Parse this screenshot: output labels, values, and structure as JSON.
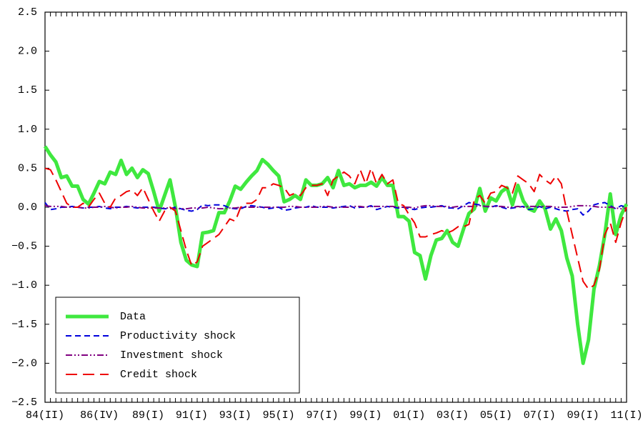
{
  "chart_data": {
    "type": "line",
    "categories": [
      "84(II)",
      null,
      null,
      null,
      null,
      null,
      null,
      null,
      null,
      null,
      "86(IV)",
      null,
      null,
      null,
      null,
      null,
      null,
      null,
      null,
      "89(I)",
      null,
      null,
      null,
      null,
      null,
      null,
      null,
      "91(I)",
      null,
      null,
      null,
      null,
      null,
      null,
      null,
      "93(I)",
      null,
      null,
      null,
      null,
      null,
      null,
      null,
      "95(I)",
      null,
      null,
      null,
      null,
      null,
      null,
      null,
      "97(I)",
      null,
      null,
      null,
      null,
      null,
      null,
      null,
      "99(I)",
      null,
      null,
      null,
      null,
      null,
      null,
      null,
      "01(I)",
      null,
      null,
      null,
      null,
      null,
      null,
      null,
      "03(I)",
      null,
      null,
      null,
      null,
      null,
      null,
      null,
      "05(I)",
      null,
      null,
      null,
      null,
      null,
      null,
      null,
      "07(I)",
      null,
      null,
      null,
      null,
      null,
      null,
      null,
      "09(I)",
      null,
      null,
      null,
      null,
      null,
      null,
      null,
      "11(I)"
    ],
    "series": [
      {
        "name": "Data",
        "color": "#3fe83f",
        "dash": "none",
        "width": 5,
        "values": [
          0.78,
          0.67,
          0.58,
          0.38,
          0.4,
          0.27,
          0.27,
          0.1,
          0.04,
          0.18,
          0.33,
          0.3,
          0.45,
          0.42,
          0.6,
          0.42,
          0.5,
          0.38,
          0.48,
          0.43,
          0.2,
          -0.05,
          0.15,
          0.35,
          0.0,
          -0.45,
          -0.68,
          -0.74,
          -0.76,
          -0.33,
          -0.32,
          -0.3,
          -0.07,
          -0.07,
          0.08,
          0.27,
          0.23,
          0.32,
          0.4,
          0.47,
          0.61,
          0.55,
          0.47,
          0.4,
          0.07,
          0.1,
          0.15,
          0.1,
          0.35,
          0.28,
          0.28,
          0.3,
          0.38,
          0.25,
          0.47,
          0.28,
          0.3,
          0.25,
          0.28,
          0.28,
          0.32,
          0.27,
          0.38,
          0.28,
          0.28,
          -0.12,
          -0.12,
          -0.18,
          -0.58,
          -0.62,
          -0.92,
          -0.62,
          -0.42,
          -0.4,
          -0.3,
          -0.45,
          -0.5,
          -0.28,
          -0.08,
          -0.02,
          0.24,
          -0.05,
          0.12,
          0.08,
          0.2,
          0.25,
          0.03,
          0.28,
          0.08,
          -0.02,
          -0.05,
          0.08,
          -0.02,
          -0.28,
          -0.15,
          -0.3,
          -0.65,
          -0.88,
          -1.5,
          -2.0,
          -1.7,
          -1.05,
          -0.75,
          -0.35,
          0.17,
          -0.35,
          -0.1,
          0.04
        ]
      },
      {
        "name": "Productivity shock",
        "color": "#0000dd",
        "dash": "8 5",
        "width": 2,
        "values": [
          0.06,
          -0.03,
          -0.02,
          0,
          0,
          0.01,
          0,
          -0.01,
          0,
          0,
          0.01,
          -0.01,
          -0.02,
          0,
          0,
          0.01,
          0,
          -0.01,
          0,
          0,
          0,
          -0.01,
          -0.02,
          -0.02,
          0,
          -0.02,
          -0.04,
          -0.05,
          -0.03,
          0.03,
          0.02,
          0.03,
          0.03,
          0.02,
          -0.01,
          -0.02,
          -0.02,
          0.01,
          0.02,
          0.01,
          0,
          -0.02,
          -0.01,
          0,
          -0.04,
          -0.03,
          -0.01,
          0,
          0,
          0.02,
          0,
          0,
          0,
          -0.01,
          0,
          0.01,
          0.02,
          -0.01,
          0,
          0,
          0.02,
          -0.03,
          -0.01,
          0.01,
          0,
          -0.01,
          0,
          -0.02,
          -0.03,
          -0.01,
          0,
          0,
          0.01,
          0.02,
          -0.01,
          -0.01,
          -0.02,
          0.02,
          0.06,
          0.04,
          0.03,
          0.01,
          0,
          0.02,
          0,
          -0.02,
          -0.01,
          0,
          0.01,
          -0.03,
          -0.02,
          0.01,
          -0.02,
          0,
          -0.02,
          -0.04,
          -0.05,
          -0.03,
          -0.02,
          -0.1,
          -0.05,
          0.03,
          0.05,
          0.06,
          0.02,
          -0.02,
          0.02,
          0
        ]
      },
      {
        "name": "Investment shock",
        "color": "#800080",
        "dash": "9 3 2 3 2 3",
        "width": 2,
        "values": [
          0.02,
          0.01,
          0.01,
          0.01,
          0,
          0,
          0,
          -0.01,
          -0.01,
          0,
          0,
          0.01,
          0,
          -0.01,
          0,
          0,
          0.01,
          0,
          -0.01,
          -0.01,
          -0.01,
          -0.01,
          -0.01,
          -0.01,
          -0.02,
          -0.02,
          -0.02,
          -0.01,
          -0.01,
          -0.01,
          0,
          -0.01,
          -0.02,
          -0.02,
          -0.01,
          -0.01,
          0,
          0,
          0,
          0,
          0,
          0,
          0,
          0,
          0,
          0.01,
          0.01,
          0,
          0,
          0,
          0,
          0.01,
          0.01,
          0,
          0,
          0,
          0,
          0.01,
          0.01,
          0,
          0.01,
          0.01,
          0.01,
          0.01,
          0.01,
          0,
          0,
          0,
          -0.01,
          0.01,
          0.02,
          0.02,
          0.01,
          0.01,
          0.01,
          0,
          0.01,
          0.01,
          0.01,
          0.01,
          0.02,
          0.01,
          0.01,
          0.01,
          0.01,
          0,
          0,
          0.01,
          0,
          0.01,
          0.01,
          0.01,
          0.01,
          0.01,
          0,
          0,
          0,
          0.01,
          0.02,
          0.02,
          0.02,
          0.01,
          0,
          0,
          0,
          -0.01,
          -0.02,
          -0.01
        ]
      },
      {
        "name": "Credit shock",
        "color": "#ee0000",
        "dash": "16 8",
        "width": 2,
        "values": [
          0.5,
          0.48,
          0.35,
          0.2,
          0.05,
          0.0,
          0.0,
          0.05,
          0.0,
          0.1,
          0.18,
          0.05,
          0.0,
          0.12,
          0.15,
          0.2,
          0.22,
          0.15,
          0.25,
          0.1,
          -0.05,
          -0.18,
          -0.05,
          0.0,
          -0.05,
          -0.3,
          -0.55,
          -0.75,
          -0.7,
          -0.5,
          -0.45,
          -0.4,
          -0.35,
          -0.25,
          -0.15,
          -0.18,
          0.0,
          0.05,
          0.05,
          0.1,
          0.25,
          0.25,
          0.3,
          0.28,
          0.25,
          0.15,
          0.18,
          0.15,
          0.25,
          0.28,
          0.28,
          0.3,
          0.15,
          0.35,
          0.4,
          0.45,
          0.4,
          0.3,
          0.48,
          0.3,
          0.5,
          0.3,
          0.42,
          0.3,
          0.35,
          0.05,
          0.02,
          -0.1,
          -0.2,
          -0.38,
          -0.38,
          -0.35,
          -0.33,
          -0.3,
          -0.33,
          -0.3,
          -0.25,
          -0.25,
          -0.22,
          0.1,
          0.15,
          0.05,
          0.18,
          0.2,
          0.28,
          0.25,
          0.18,
          0.4,
          0.35,
          0.3,
          0.2,
          0.42,
          0.35,
          0.3,
          0.4,
          0.3,
          -0.05,
          -0.35,
          -0.65,
          -0.95,
          -1.05,
          -1.0,
          -0.8,
          -0.35,
          -0.2,
          -0.45,
          -0.2,
          0.0
        ]
      }
    ],
    "ylim": [
      -2.5,
      2.5
    ],
    "yticks": [
      {
        "value": -2.5,
        "label": "−2.5"
      },
      {
        "value": -2,
        "label": "−2.0"
      },
      {
        "value": -1.5,
        "label": "−1.5"
      },
      {
        "value": -1,
        "label": "−1.0"
      },
      {
        "value": -0.5,
        "label": "−0.5"
      },
      {
        "value": 0,
        "label": "0.0"
      },
      0.5,
      {
        "value": 1,
        "label": "1.0"
      },
      1.5,
      {
        "value": 2,
        "label": "2.0"
      },
      2.5
    ],
    "grid": false,
    "legend": "lower left"
  }
}
